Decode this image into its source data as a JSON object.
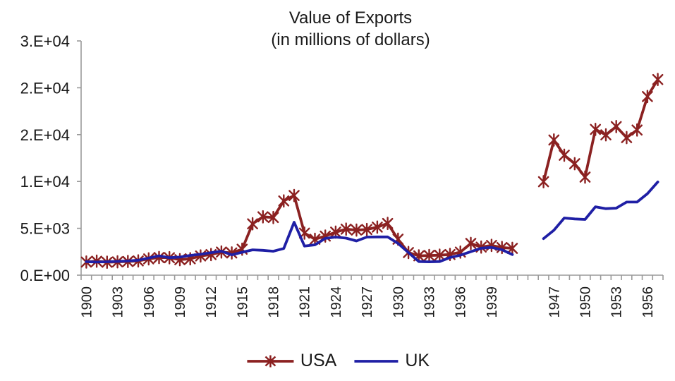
{
  "chart_data": {
    "type": "line",
    "title": "Value of Exports",
    "subtitle": "(in millions of dollars)",
    "grid": "off",
    "axis_color": "#9a9a9a",
    "text_color": "#1a1a1a",
    "background_color": "#ffffff",
    "y_axis": {
      "min": 0,
      "max": 25000,
      "tick_interval": 5000,
      "tick_labels_bottom_to_top": [
        "0.E+00",
        "5.E+03",
        "1.E+04",
        "2.E+04",
        "2.E+04",
        "3.E+04"
      ]
    },
    "x_axis": {
      "label_every": 3,
      "visible_labels": [
        "1900",
        "1903",
        "1906",
        "1909",
        "1912",
        "1915",
        "1918",
        "1921",
        "1924",
        "1927",
        "1930",
        "1933",
        "1936",
        "1939",
        "1947",
        "1950",
        "1953",
        "1956"
      ],
      "categories": [
        "1900",
        "1901",
        "1902",
        "1903",
        "1904",
        "1905",
        "1906",
        "1907",
        "1908",
        "1909",
        "1910",
        "1911",
        "1912",
        "1913",
        "1914",
        "1915",
        "1916",
        "1917",
        "1918",
        "1919",
        "1920",
        "1921",
        "1922",
        "1923",
        "1924",
        "1925",
        "1926",
        "1927",
        "1928",
        "1929",
        "1930",
        "1931",
        "1932",
        "1933",
        "1934",
        "1935",
        "1936",
        "1937",
        "1938",
        "1939",
        "1940",
        "1941",
        "",
        "",
        "1946",
        "1947",
        "1948",
        "1949",
        "1950",
        "1951",
        "1952",
        "1953",
        "1954",
        "1955",
        "1956",
        "1957"
      ]
    },
    "series": [
      {
        "name": "USA",
        "color": "#8B2121",
        "marker": "star",
        "values": [
          1400,
          1490,
          1380,
          1420,
          1460,
          1520,
          1740,
          1880,
          1860,
          1660,
          1750,
          2050,
          2200,
          2470,
          2370,
          2770,
          5480,
          6230,
          6150,
          7920,
          8500,
          4490,
          3830,
          4170,
          4590,
          4910,
          4810,
          4870,
          5130,
          5520,
          3840,
          2420,
          2060,
          2100,
          2130,
          2210,
          2460,
          3390,
          3000,
          3180,
          2950,
          2860,
          null,
          null,
          9980,
          14430,
          12800,
          11900,
          10470,
          15560,
          14980,
          15860,
          14680,
          15490,
          19070,
          20880
        ]
      },
      {
        "name": "UK",
        "color": "#1F1FA5",
        "marker": "none",
        "values": [
          1440,
          1400,
          1430,
          1470,
          1510,
          1600,
          1830,
          2060,
          1870,
          1930,
          2110,
          2230,
          2400,
          2560,
          2170,
          2450,
          2700,
          2650,
          2550,
          2850,
          5650,
          3100,
          3240,
          3920,
          4070,
          3950,
          3650,
          4070,
          4080,
          4080,
          3390,
          2410,
          1450,
          1420,
          1450,
          1880,
          2130,
          2510,
          2880,
          2960,
          2710,
          2200,
          null,
          null,
          3900,
          4800,
          6100,
          6000,
          5950,
          7300,
          7100,
          7150,
          7800,
          7800,
          8700,
          9950
        ]
      }
    ],
    "legend": {
      "position": "bottom"
    }
  }
}
